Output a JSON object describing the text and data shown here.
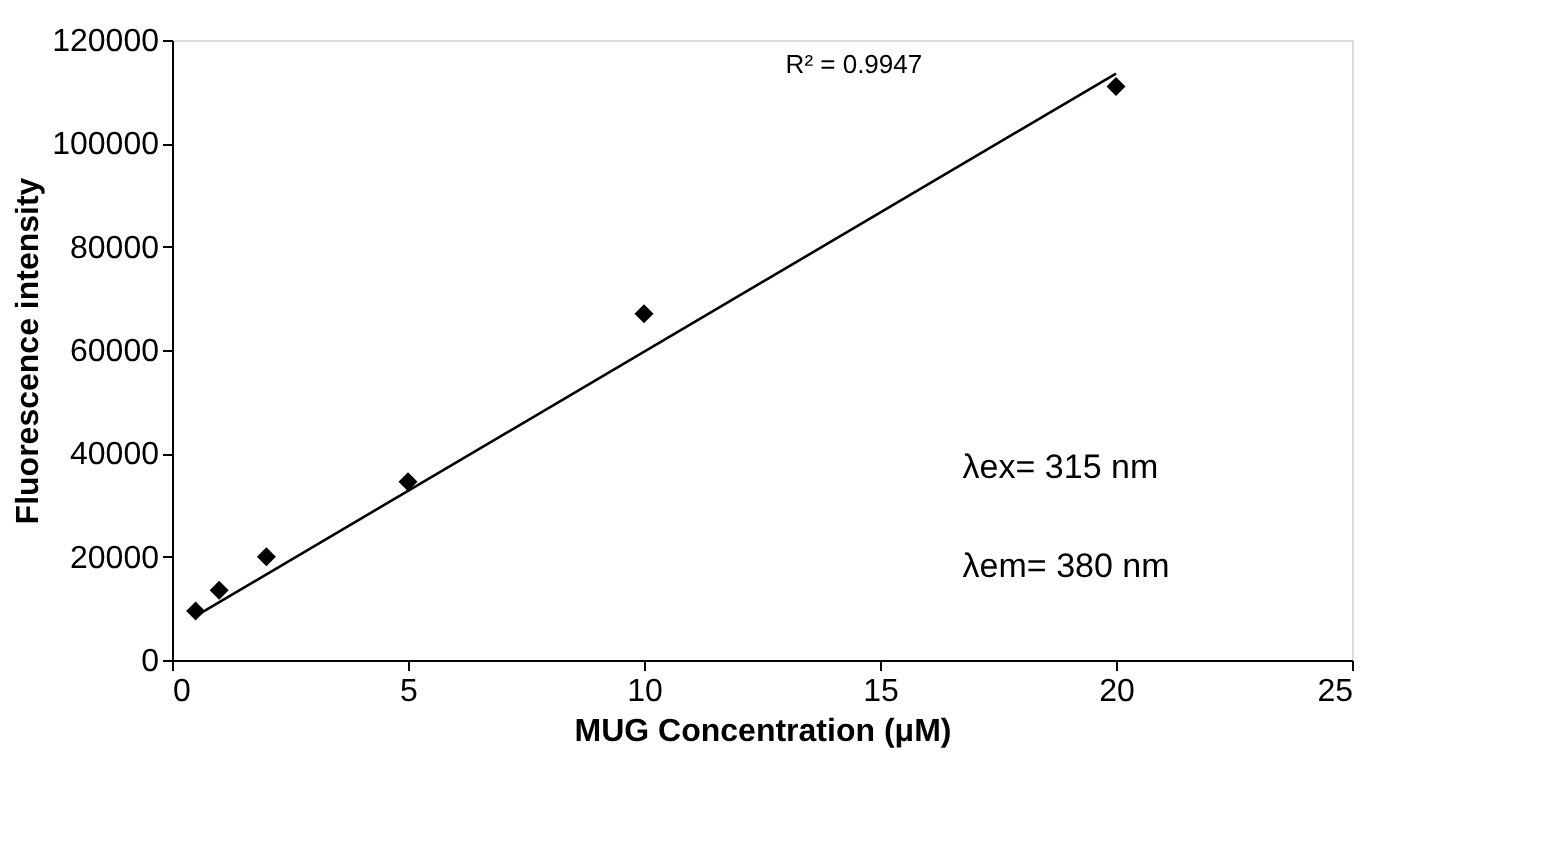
{
  "chart_data": {
    "type": "scatter",
    "xlabel": "MUG Concentration (μM)",
    "ylabel": "Fluorescence intensity",
    "xlim": [
      0,
      25
    ],
    "xticks": [
      0,
      5,
      10,
      15,
      20,
      25
    ],
    "ylim": [
      0,
      120000
    ],
    "yticks": [
      0,
      20000,
      40000,
      60000,
      80000,
      100000,
      120000
    ],
    "grid": false,
    "marker": "diamond",
    "series": [
      {
        "color": "#000000",
        "x": [
          0.5,
          1,
          2,
          5,
          10,
          20
        ],
        "values": [
          9500,
          13500,
          20000,
          34500,
          67000,
          111000
        ]
      },
      {
        "type": "line",
        "color": "#000000",
        "x": [
          0.5,
          20
        ],
        "values": [
          8500,
          113500
        ],
        "line_style": "solid",
        "marker": "none"
      }
    ],
    "annotations": [
      "R² = 0.9947",
      "λex= 315 nm",
      "λem= 380 nm"
    ]
  }
}
